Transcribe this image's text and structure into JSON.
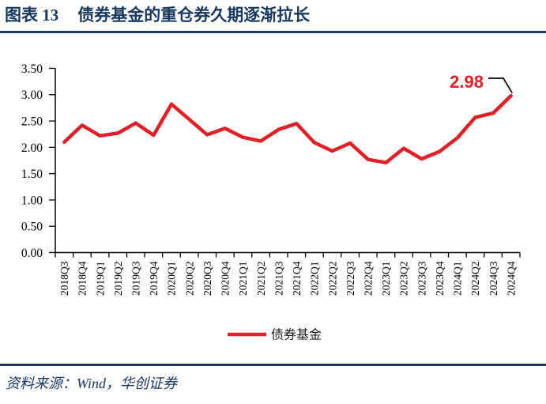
{
  "page": {
    "figure_label": "图表 13",
    "title": "债券基金的重仓券久期逐渐拉长",
    "source_text": "资料来源：Wind，华创证券"
  },
  "colors": {
    "navy": "#17375E",
    "series_red": "#E02026",
    "axis": "#000000",
    "label_text": "#000000"
  },
  "chart_data": {
    "type": "line",
    "title": "",
    "xlabel": "",
    "ylabel": "",
    "categories": [
      "2018Q3",
      "2018Q4",
      "2019Q1",
      "2019Q2",
      "2019Q3",
      "2019Q4",
      "2020Q1",
      "2020Q2",
      "2020Q3",
      "2020Q4",
      "2021Q1",
      "2021Q2",
      "2021Q3",
      "2021Q4",
      "2022Q1",
      "2022Q2",
      "2022Q3",
      "2022Q4",
      "2023Q1",
      "2023Q2",
      "2023Q3",
      "2023Q4",
      "2024Q1",
      "2024Q2",
      "2024Q3",
      "2024Q4"
    ],
    "series": [
      {
        "name": "债券基金",
        "color": "#E02026",
        "values": [
          2.1,
          2.42,
          2.22,
          2.27,
          2.46,
          2.23,
          2.82,
          2.53,
          2.24,
          2.36,
          2.19,
          2.12,
          2.34,
          2.45,
          2.09,
          1.93,
          2.08,
          1.77,
          1.71,
          1.98,
          1.78,
          1.92,
          2.18,
          2.57,
          2.65,
          2.98
        ]
      }
    ],
    "ylim": [
      0,
      3.5
    ],
    "ytick_labels": [
      "3.50",
      "3.00",
      "2.50",
      "2.00",
      "1.50",
      "1.00",
      "0.50",
      "0.00"
    ],
    "grid": false,
    "legend_position": "bottom",
    "annotation": {
      "text": "2.98",
      "target_index": 25
    }
  }
}
